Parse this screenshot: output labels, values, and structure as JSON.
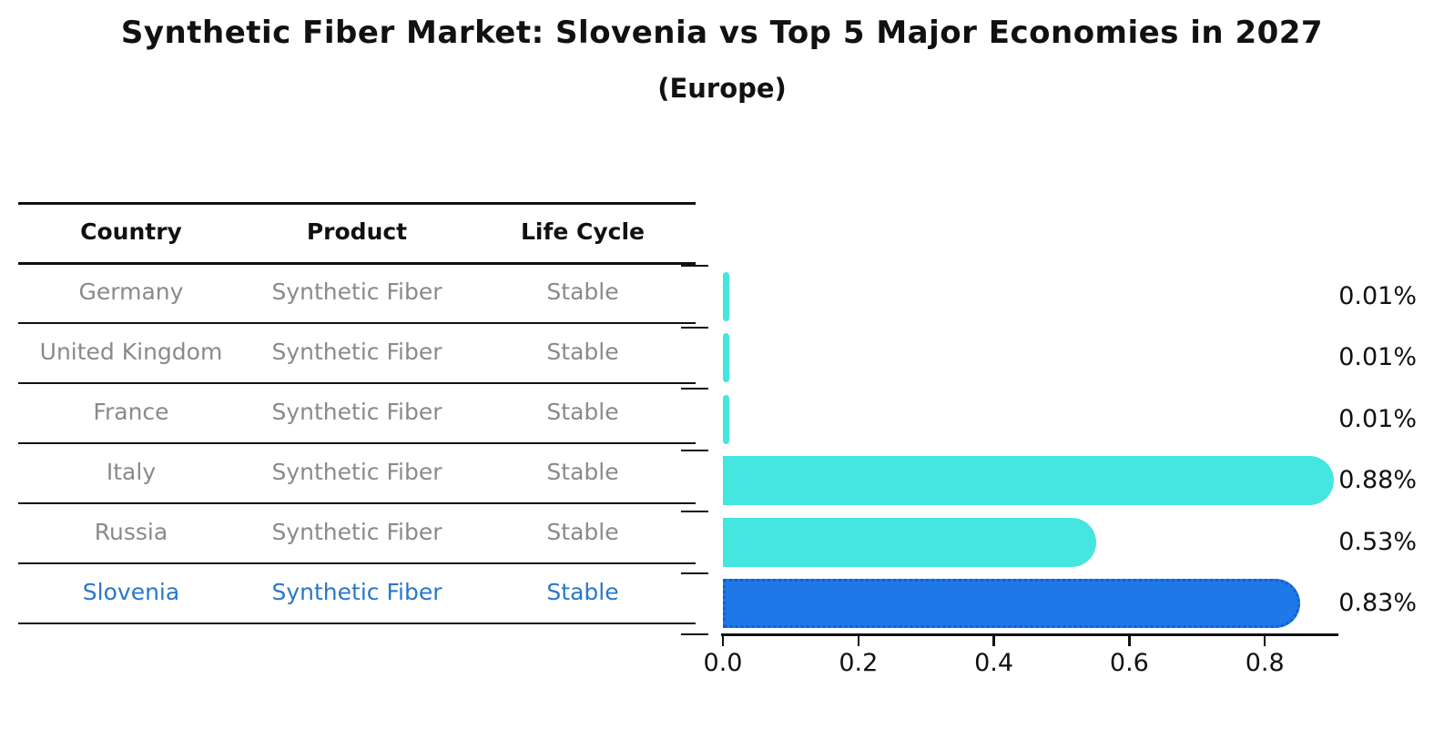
{
  "title": "Synthetic Fiber Market: Slovenia vs Top 5 Major Economies in 2027",
  "subtitle": "(Europe)",
  "table": {
    "headers": [
      "Country",
      "Product",
      "Life Cycle"
    ],
    "rows": [
      {
        "country": "Germany",
        "product": "Synthetic Fiber",
        "life_cycle": "Stable",
        "highlighted": false
      },
      {
        "country": "United Kingdom",
        "product": "Synthetic Fiber",
        "life_cycle": "Stable",
        "highlighted": false
      },
      {
        "country": "France",
        "product": "Synthetic Fiber",
        "life_cycle": "Stable",
        "highlighted": false
      },
      {
        "country": "Italy",
        "product": "Synthetic Fiber",
        "life_cycle": "Stable",
        "highlighted": false
      },
      {
        "country": "Russia",
        "product": "Synthetic Fiber",
        "life_cycle": "Stable",
        "highlighted": false
      },
      {
        "country": "Slovenia",
        "product": "Synthetic Fiber",
        "life_cycle": "Stable",
        "highlighted": true
      }
    ]
  },
  "chart_data": {
    "type": "bar",
    "orientation": "horizontal",
    "categories": [
      "Germany",
      "United Kingdom",
      "France",
      "Italy",
      "Russia",
      "Slovenia"
    ],
    "values": [
      0.01,
      0.01,
      0.01,
      0.88,
      0.53,
      0.83
    ],
    "value_labels": [
      "0.01%",
      "0.01%",
      "0.01%",
      "0.88%",
      "0.53%",
      "0.83%"
    ],
    "x_tick_labels": [
      "0.0",
      "0.2",
      "0.4",
      "0.6",
      "0.8"
    ],
    "x_tick_values": [
      0.0,
      0.2,
      0.4,
      0.6,
      0.8
    ],
    "xlim": [
      0,
      0.925
    ],
    "highlight_index": 5,
    "title": "Synthetic Fiber Market: Slovenia vs Top 5 Major Economies in 2027",
    "subtitle": "(Europe)",
    "xlabel": "",
    "ylabel": "",
    "grid": "off",
    "legend": "none"
  },
  "colors": {
    "bar_cyan": "#45e5e0",
    "bar_blue": "#1e78e8",
    "bar_blue_border": "#1461c8",
    "highlight_text": "#2878c8",
    "row_text": "#8a8a8a",
    "axis_text": "#111111"
  }
}
